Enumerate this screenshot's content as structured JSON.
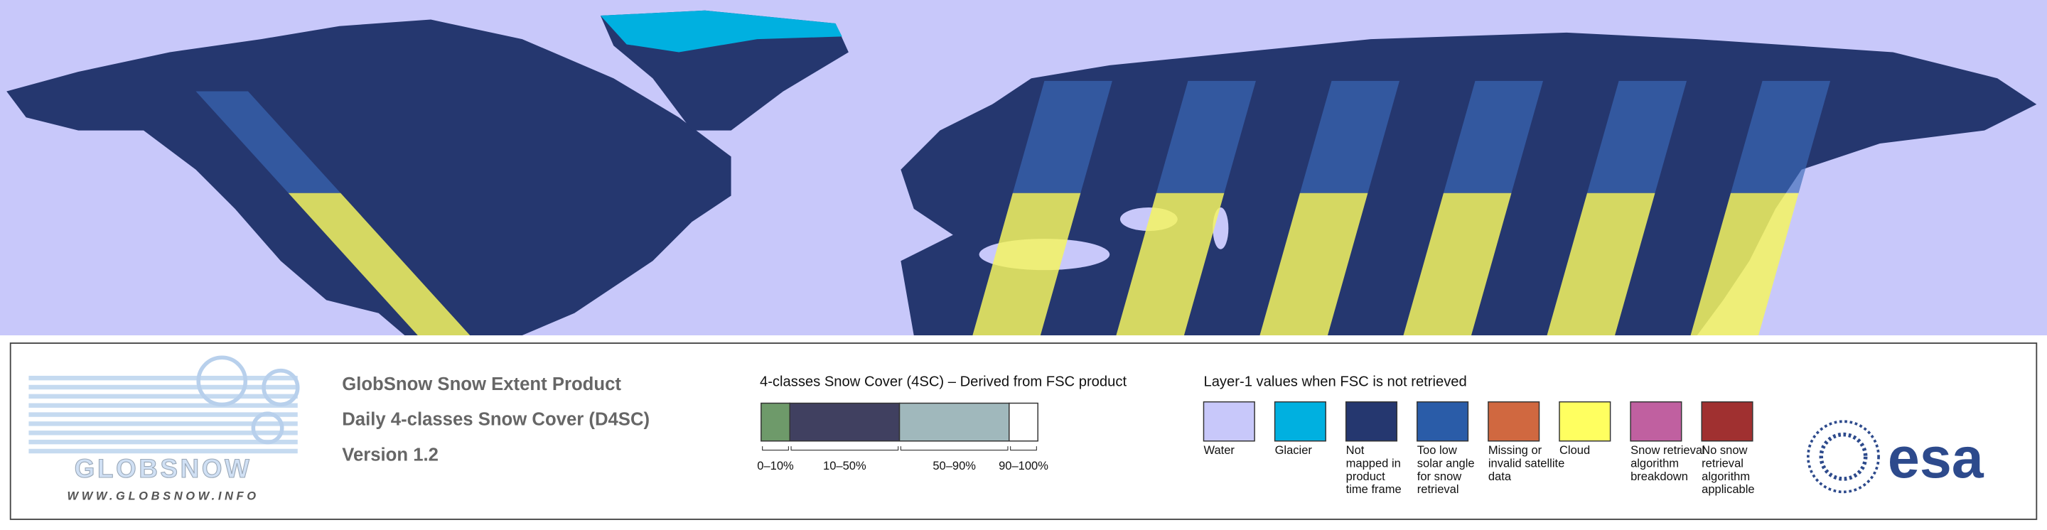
{
  "logo": {
    "name": "GLOBSNOW",
    "url": "WWW.GLOBSNOW.INFO"
  },
  "product": {
    "title": "GlobSnow Snow Extent Product",
    "subtitle": "Daily 4-classes Snow Cover (D4SC)",
    "version": "Version 1.2"
  },
  "legend_4sc": {
    "title": "4-classes Snow Cover (4SC) – Derived from FSC product",
    "classes": [
      {
        "label": "0–10%",
        "color": "#6e9a6a"
      },
      {
        "label": "10–50%",
        "color": "#404060"
      },
      {
        "label": "50–90%",
        "color": "#a0b8bc"
      },
      {
        "label": "90–100%",
        "color": "#ffffff"
      }
    ]
  },
  "legend_layer1": {
    "title": "Layer-1 values when FSC is not retrieved",
    "classes": [
      {
        "label": [
          "Water"
        ],
        "color": "#c8c8fa"
      },
      {
        "label": [
          "Glacier"
        ],
        "color": "#00b0e0"
      },
      {
        "label": [
          "Not",
          "mapped in",
          "product",
          "time frame"
        ],
        "color": "#25376f"
      },
      {
        "label": [
          "Too low",
          "solar angle",
          "for snow",
          "retrieval"
        ],
        "color": "#2a5ca8"
      },
      {
        "label": [
          "Missing or",
          "invalid satellite",
          "data"
        ],
        "color": "#d06840"
      },
      {
        "label": [
          "Cloud"
        ],
        "color": "#ffff60"
      },
      {
        "label": [
          "Snow retrieval",
          "algorithm",
          "breakdown"
        ],
        "color": "#c060a0"
      },
      {
        "label": [
          "No snow",
          "retrieval",
          "algorithm",
          "applicable"
        ],
        "color": "#a03030"
      }
    ]
  },
  "esa_logo": "esa"
}
